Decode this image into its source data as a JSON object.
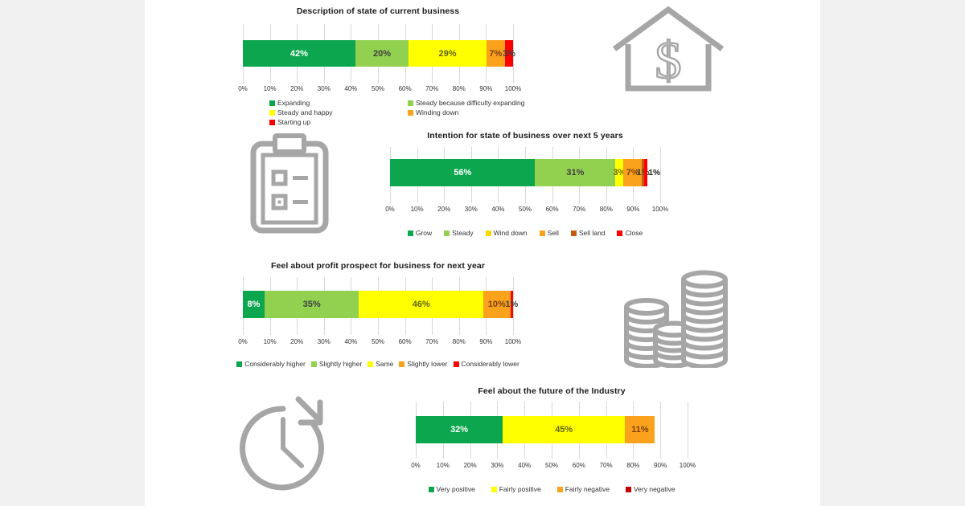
{
  "canvas": {
    "page_background": "#f0f0f0",
    "background": "#ffffff"
  },
  "palette": {
    "green": "#0ca64e",
    "light_green": "#92d050",
    "yellow": "#ffff00",
    "orange": "#faa21b",
    "dark_orange": "#c55a11",
    "red": "#ff0000",
    "dark_red": "#c00000",
    "icon_gray": "#a6a6a6",
    "grid_gray": "#d9d9d9"
  },
  "icons": [
    {
      "name": "house-dollar-icon"
    },
    {
      "name": "clipboard-checklist-icon"
    },
    {
      "name": "coin-stacks-icon"
    },
    {
      "name": "clock-history-icon"
    }
  ],
  "chart_data": [
    {
      "type": "bar",
      "orientation": "horizontal",
      "stacked": true,
      "title": "Description of state of current business",
      "xlim": [
        0,
        100
      ],
      "grid": true,
      "x_ticks": [
        "0%",
        "10%",
        "20%",
        "30%",
        "40%",
        "50%",
        "60%",
        "70%",
        "80%",
        "90%",
        "100%"
      ],
      "segments": [
        {
          "label": "Expanding",
          "value": 42,
          "display": "42%",
          "color": "#0ca64e",
          "text": "#ffffff"
        },
        {
          "label": "Steady because difficulty expanding",
          "value": 20,
          "display": "20%",
          "color": "#92d050",
          "text": "#404040"
        },
        {
          "label": "Steady and happy",
          "value": 29,
          "display": "29%",
          "color": "#ffff00",
          "text": "#666600"
        },
        {
          "label": "Winding down",
          "value": 7,
          "display": "7%",
          "color": "#faa21b",
          "text": "#7f4012"
        },
        {
          "label": "Starting up",
          "value": 3,
          "display": "3%",
          "color": "#ff0000",
          "text": "#404040"
        }
      ],
      "legend": {
        "layout": "grid-2-columns",
        "items": [
          {
            "label": "Expanding",
            "color": "#0ca64e"
          },
          {
            "label": "Steady because difficulty expanding",
            "color": "#92d050"
          },
          {
            "label": "Steady and happy",
            "color": "#ffff00"
          },
          {
            "label": "Winding down",
            "color": "#faa21b"
          },
          {
            "label": "Starting up",
            "color": "#ff0000"
          }
        ]
      }
    },
    {
      "type": "bar",
      "orientation": "horizontal",
      "stacked": true,
      "title": "Intention for state of business over next 5 years",
      "xlim": [
        0,
        100
      ],
      "grid": true,
      "x_ticks": [
        "0%",
        "10%",
        "20%",
        "30%",
        "40%",
        "50%",
        "60%",
        "70%",
        "80%",
        "90%",
        "100%"
      ],
      "segments": [
        {
          "label": "Grow",
          "value": 56,
          "display": "56%",
          "color": "#0ca64e",
          "text": "#ffffff"
        },
        {
          "label": "Steady",
          "value": 31,
          "display": "31%",
          "color": "#92d050",
          "text": "#404040"
        },
        {
          "label": "Wind down",
          "value": 3,
          "display": "3%",
          "color": "#ffff00",
          "text": "#666600"
        },
        {
          "label": "Sell",
          "value": 7,
          "display": "7%",
          "color": "#faa21b",
          "text": "#7f4012"
        },
        {
          "label": "Sell land",
          "value": 1,
          "display": "1%",
          "color": "#c55a11",
          "text": "#404040"
        },
        {
          "label": "Close",
          "value": 1,
          "display": "1%",
          "color": "#ff0000",
          "text": "#1a1a1a",
          "label_position": "outside"
        }
      ],
      "legend": {
        "layout": "row",
        "items": [
          {
            "label": "Grow",
            "color": "#0ca64e"
          },
          {
            "label": "Steady",
            "color": "#92d050"
          },
          {
            "label": "Wind down",
            "color": "#ffd700"
          },
          {
            "label": "Sell",
            "color": "#faa21b"
          },
          {
            "label": "Sell land",
            "color": "#c55a11"
          },
          {
            "label": "Close",
            "color": "#ff0000"
          }
        ]
      }
    },
    {
      "type": "bar",
      "orientation": "horizontal",
      "stacked": true,
      "title": "Feel about profit prospect for business for next year",
      "xlim": [
        0,
        100
      ],
      "grid": true,
      "x_ticks": [
        "0%",
        "10%",
        "20%",
        "30%",
        "40%",
        "50%",
        "60%",
        "70%",
        "80%",
        "90%",
        "100%"
      ],
      "segments": [
        {
          "label": "Considerably higher",
          "value": 8,
          "display": "8%",
          "color": "#0ca64e",
          "text": "#ffffff"
        },
        {
          "label": "Slightly higher",
          "value": 35,
          "display": "35%",
          "color": "#92d050",
          "text": "#404040"
        },
        {
          "label": "Same",
          "value": 46,
          "display": "46%",
          "color": "#ffff00",
          "text": "#666600"
        },
        {
          "label": "Slightly lower",
          "value": 10,
          "display": "10%",
          "color": "#faa21b",
          "text": "#7f4012"
        },
        {
          "label": "Considerably lower",
          "value": 1,
          "display": "1%",
          "color": "#ff0000",
          "text": "#404040"
        }
      ],
      "legend": {
        "layout": "row",
        "items": [
          {
            "label": "Considerably higher",
            "color": "#0ca64e"
          },
          {
            "label": "Slightly higher",
            "color": "#92d050"
          },
          {
            "label": "Same",
            "color": "#ffff00"
          },
          {
            "label": "Slightly lower",
            "color": "#faa21b"
          },
          {
            "label": "Considerably lower",
            "color": "#ff0000"
          }
        ]
      }
    },
    {
      "type": "bar",
      "orientation": "horizontal",
      "stacked": true,
      "title": "Feel about the future of the Industry",
      "xlim": [
        0,
        100
      ],
      "grid": true,
      "x_ticks": [
        "0%",
        "10%",
        "20%",
        "30%",
        "40%",
        "50%",
        "60%",
        "70%",
        "80%",
        "90%",
        "100%"
      ],
      "segments": [
        {
          "label": "Very positive",
          "value": 32,
          "display": "32%",
          "color": "#0ca64e",
          "text": "#ffffff"
        },
        {
          "label": "Fairly positive",
          "value": 45,
          "display": "45%",
          "color": "#ffff00",
          "text": "#666600"
        },
        {
          "label": "Fairly negative",
          "value": 11,
          "display": "11%",
          "color": "#faa21b",
          "text": "#7f4012"
        }
      ],
      "legend": {
        "layout": "row",
        "items": [
          {
            "label": "Very positive",
            "color": "#0ca64e"
          },
          {
            "label": "Fairly positive",
            "color": "#ffff00"
          },
          {
            "label": "Fairly negative",
            "color": "#faa21b"
          },
          {
            "label": "Very negative",
            "color": "#c00000"
          }
        ]
      }
    }
  ]
}
